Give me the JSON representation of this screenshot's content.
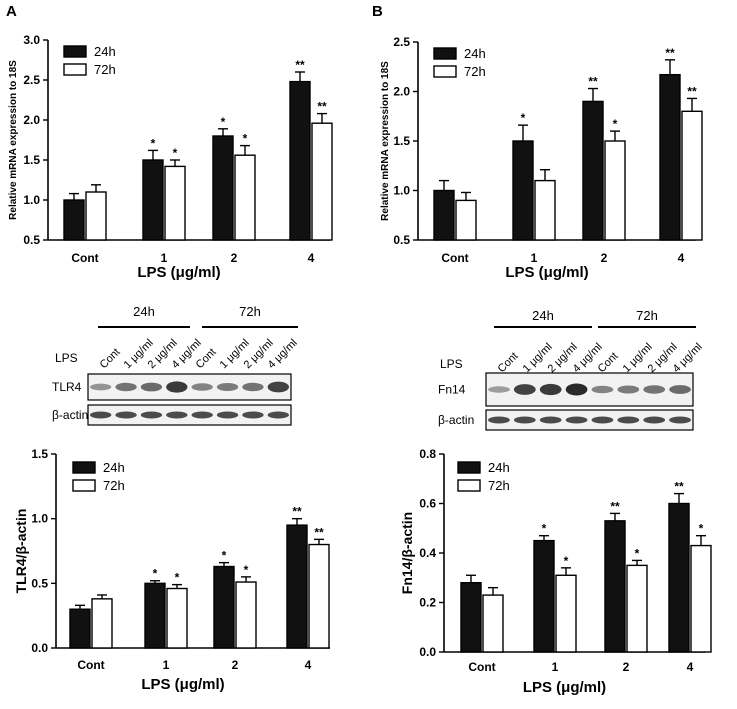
{
  "panel_letters": [
    "A",
    "B"
  ],
  "chart_data": [
    {
      "type": "bar",
      "id": "A-top",
      "ylabel": "Relative mRNA expression to 18S",
      "xlabel": "LPS (μg/ml)",
      "categories": [
        "Cont",
        "1",
        "2",
        "4"
      ],
      "ylim": [
        0.5,
        3.0
      ],
      "yticks": [
        "0.5",
        "1.0",
        "1.5",
        "2.0",
        "2.5",
        "3.0"
      ],
      "legend": [
        "24h",
        "72h"
      ],
      "series": [
        {
          "name": "24h",
          "values": [
            1.0,
            1.5,
            1.8,
            2.48
          ],
          "errors": [
            0.08,
            0.12,
            0.09,
            0.12
          ],
          "sig": [
            "",
            "*",
            "*",
            "**"
          ]
        },
        {
          "name": "72h",
          "values": [
            1.1,
            1.42,
            1.56,
            1.96
          ],
          "errors": [
            0.09,
            0.08,
            0.12,
            0.12
          ],
          "sig": [
            "",
            "*",
            "*",
            "**"
          ]
        }
      ]
    },
    {
      "type": "bar",
      "id": "B-top",
      "ylabel": "Relative mRNA expression to 18S",
      "xlabel": "LPS (μg/ml)",
      "categories": [
        "Cont",
        "1",
        "2",
        "4"
      ],
      "ylim": [
        0.5,
        2.5
      ],
      "yticks": [
        "0.5",
        "1.0",
        "1.5",
        "2.0",
        "2.5"
      ],
      "legend": [
        "24h",
        "72h"
      ],
      "series": [
        {
          "name": "24h",
          "values": [
            1.0,
            1.5,
            1.9,
            2.17
          ],
          "errors": [
            0.1,
            0.16,
            0.13,
            0.15
          ],
          "sig": [
            "",
            "*",
            "**",
            "**"
          ]
        },
        {
          "name": "72h",
          "values": [
            0.9,
            1.1,
            1.5,
            1.8
          ],
          "errors": [
            0.08,
            0.11,
            0.1,
            0.13
          ],
          "sig": [
            "",
            "",
            "*",
            "**"
          ]
        }
      ]
    },
    {
      "type": "bar",
      "id": "A-bottom",
      "ylabel": "TLR4/β-actin",
      "xlabel": "LPS (μg/ml)",
      "categories": [
        "Cont",
        "1",
        "2",
        "4"
      ],
      "ylim": [
        0.0,
        1.5
      ],
      "yticks": [
        "0.0",
        "0.5",
        "1.0",
        "1.5"
      ],
      "legend": [
        "24h",
        "72h"
      ],
      "series": [
        {
          "name": "24h",
          "values": [
            0.3,
            0.5,
            0.63,
            0.95
          ],
          "errors": [
            0.03,
            0.02,
            0.03,
            0.05
          ],
          "sig": [
            "",
            "*",
            "*",
            "**"
          ]
        },
        {
          "name": "72h",
          "values": [
            0.38,
            0.46,
            0.51,
            0.8
          ],
          "errors": [
            0.03,
            0.03,
            0.04,
            0.04
          ],
          "sig": [
            "",
            "*",
            "*",
            "**"
          ]
        }
      ]
    },
    {
      "type": "bar",
      "id": "B-bottom",
      "ylabel": "Fn14/β-actin",
      "xlabel": "LPS (μg/ml)",
      "categories": [
        "Cont",
        "1",
        "2",
        "4"
      ],
      "ylim": [
        0.0,
        0.8
      ],
      "yticks": [
        "0.0",
        "0.2",
        "0.4",
        "0.6",
        "0.8"
      ],
      "legend": [
        "24h",
        "72h"
      ],
      "series": [
        {
          "name": "24h",
          "values": [
            0.28,
            0.45,
            0.53,
            0.6
          ],
          "errors": [
            0.03,
            0.02,
            0.03,
            0.04
          ],
          "sig": [
            "",
            "*",
            "**",
            "**"
          ]
        },
        {
          "name": "72h",
          "values": [
            0.23,
            0.31,
            0.35,
            0.43
          ],
          "errors": [
            0.03,
            0.03,
            0.02,
            0.04
          ],
          "sig": [
            "",
            "*",
            "*",
            "*"
          ]
        }
      ]
    }
  ],
  "blots": [
    {
      "id": "A",
      "groups": [
        "24h",
        "72h"
      ],
      "lps_label": "LPS",
      "lanes": [
        "Cont",
        "1 μg/ml",
        "2 μg/ml",
        "4 μg/ml",
        "Cont",
        "1 μg/ml",
        "2 μg/ml",
        "4 μg/ml"
      ],
      "target": "TLR4",
      "loading": "β-actin"
    },
    {
      "id": "B",
      "groups": [
        "24h",
        "72h"
      ],
      "lps_label": "LPS",
      "lanes": [
        "Cont",
        "1 μg/ml",
        "2 μg/ml",
        "4 μg/ml",
        "Cont",
        "1 μg/ml",
        "2 μg/ml",
        "4 μg/ml"
      ],
      "target": "Fn14",
      "loading": "β-actin"
    }
  ]
}
